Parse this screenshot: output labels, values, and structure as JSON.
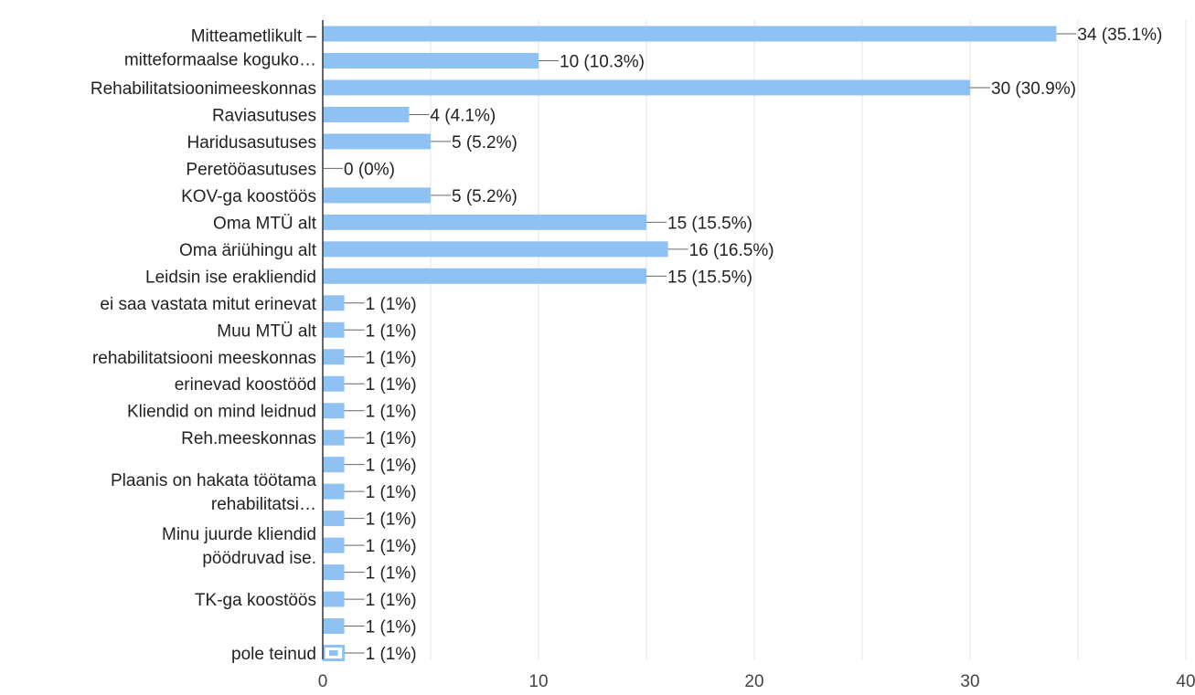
{
  "chart_data": {
    "type": "bar",
    "orientation": "horizontal",
    "categories": [
      "Mitteametlikult – mitteformaalse koguko…",
      "",
      "Rehabilitatsioonimeeskonnas",
      "Raviasutuses",
      "Haridusasutuses",
      "Peretööasutuses",
      "KOV-ga koostöös",
      "Oma MTÜ alt",
      "Oma äriühingu alt",
      "Leidsin ise erakliendid",
      "ei saa vastata mitut erinevat",
      "Muu MTÜ alt",
      "rehabilitatsiooni meeskonnas",
      "erinevad koostööd",
      "Kliendid on mind leidnud",
      "Reh.meeskonnas",
      "",
      "Plaanis on hakata töötama rehabilitatsi…",
      "",
      "Minu juurde kliendid pöödruvad ise.",
      "",
      "TK-ga koostöös",
      "",
      "pole teinud"
    ],
    "category_lines": [
      [
        "Mitteametlikult –",
        "mitteformaalse koguko…"
      ],
      [],
      [
        "Rehabilitatsioonimeeskonnas"
      ],
      [
        "Raviasutuses"
      ],
      [
        "Haridusasutuses"
      ],
      [
        "Peretööasutuses"
      ],
      [
        "KOV-ga koostöös"
      ],
      [
        "Oma MTÜ alt"
      ],
      [
        "Oma äriühingu alt"
      ],
      [
        "Leidsin ise erakliendid"
      ],
      [
        "ei saa vastata mitut erinevat"
      ],
      [
        "Muu MTÜ alt"
      ],
      [
        "rehabilitatsiooni meeskonnas"
      ],
      [
        "erinevad koostööd"
      ],
      [
        "Kliendid on mind leidnud"
      ],
      [
        "Reh.meeskonnas"
      ],
      [],
      [
        "Plaanis on hakata töötama",
        "rehabilitatsi…"
      ],
      [],
      [
        "Minu juurde kliendid",
        "pöödruvad ise."
      ],
      [],
      [
        "TK-ga koostöös"
      ],
      [],
      [
        "pole teinud"
      ]
    ],
    "values": [
      34,
      10,
      30,
      4,
      5,
      0,
      5,
      15,
      16,
      15,
      1,
      1,
      1,
      1,
      1,
      1,
      1,
      1,
      1,
      1,
      1,
      1,
      1,
      1
    ],
    "data_labels": [
      "34 (35.1%)",
      "10 (10.3%)",
      "30 (30.9%)",
      "4 (4.1%)",
      "5 (5.2%)",
      "0 (0%)",
      "5 (5.2%)",
      "15 (15.5%)",
      "16 (16.5%)",
      "15 (15.5%)",
      "1 (1%)",
      "1 (1%)",
      "1 (1%)",
      "1 (1%)",
      "1 (1%)",
      "1 (1%)",
      "1 (1%)",
      "1 (1%)",
      "1 (1%)",
      "1 (1%)",
      "1 (1%)",
      "1 (1%)",
      "1 (1%)",
      "1 (1%)"
    ],
    "xlim": [
      0,
      40
    ],
    "xticks": [
      0,
      10,
      20,
      30,
      40
    ],
    "grid": "vertical",
    "bar_color": "#8fc1f2",
    "leader_color": "#666666",
    "grid_color": "#e6e6e6",
    "axis_color": "#333333",
    "last_bar_selected": true,
    "title": "",
    "xlabel": "",
    "ylabel": ""
  }
}
